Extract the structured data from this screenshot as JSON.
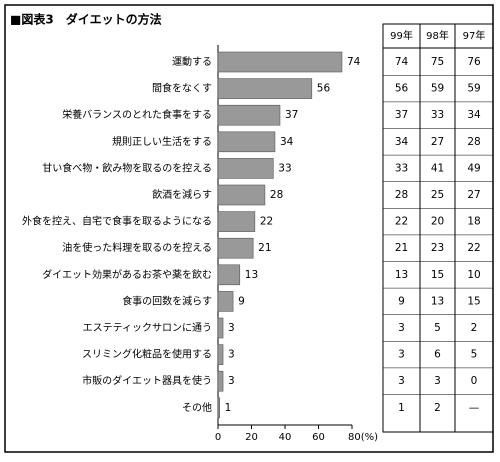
{
  "chart_data": {
    "type": "bar",
    "title": "■図表3　ダイエットの方法",
    "categories": [
      "運動する",
      "間食をなくす",
      "栄養バランスのとれた食事をする",
      "規則正しい生活をする",
      "甘い食べ物・飲み物を取るのを控える",
      "飲酒を減らす",
      "外食を控え、自宅で食事を取るようになる",
      "油を使った料理を取るのを控える",
      "ダイエット効果があるお茶や薬を飲む",
      "食事の回数を減らす",
      "エステティックサロンに通う",
      "スリミング化粧品を使用する",
      "市販のダイエット器具を使う",
      "その他"
    ],
    "series": [
      {
        "name": "99年",
        "color": "#999999",
        "values": [
          74,
          56,
          37,
          34,
          33,
          28,
          22,
          21,
          13,
          9,
          3,
          3,
          3,
          1
        ]
      },
      {
        "name": "98年",
        "values": [
          75,
          59,
          33,
          27,
          41,
          25,
          20,
          23,
          15,
          13,
          5,
          6,
          3,
          2
        ]
      },
      {
        "name": "97年",
        "values": [
          76,
          59,
          34,
          28,
          49,
          27,
          18,
          22,
          10,
          15,
          2,
          5,
          0,
          null
        ],
        "value_labels": [
          "76",
          "59",
          "34",
          "28",
          "49",
          "27",
          "18",
          "22",
          "10",
          "15",
          "2",
          "5",
          "0",
          "—"
        ]
      }
    ],
    "xlim": [
      0,
      80
    ],
    "xticks": [
      0,
      20,
      40,
      60,
      {
        "value": 80,
        "label": "80(%)"
      }
    ]
  }
}
